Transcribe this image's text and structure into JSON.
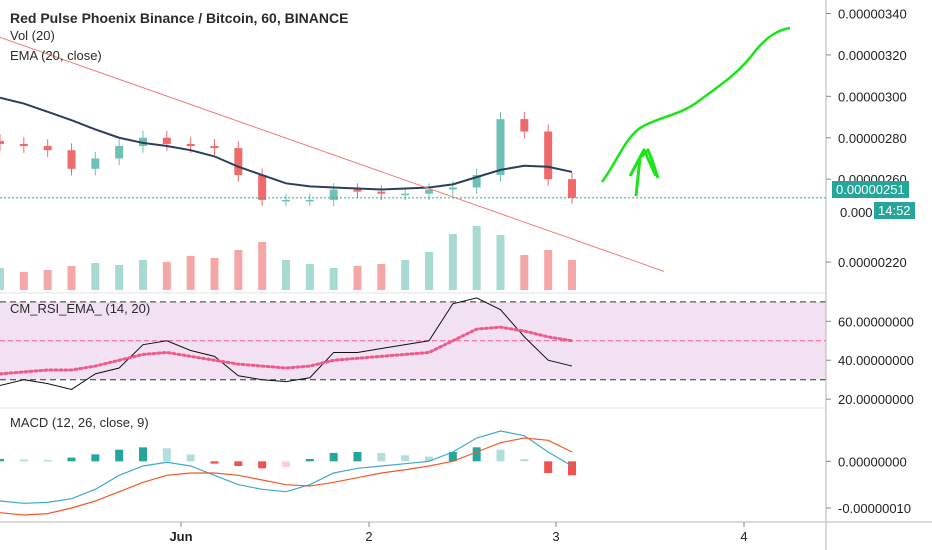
{
  "legends": {
    "title": "Red Pulse Phoenix Binance / Bitcoin, 60, BINANCE",
    "volume": "Vol (20)",
    "ema": "EMA (20, close)",
    "rsi": "CM_RSI_EMA_ (14, 20)",
    "macd": "MACD (12, 26, close, 9)"
  },
  "colors": {
    "up": "#6fc1b6",
    "down": "#ef6b6b",
    "ema": "#2b3f5c",
    "trendline": "#f27d7d",
    "arrow": "#19e619",
    "price_line": "#26a69a",
    "rsi_band": "#f1e1f2",
    "rsi_ema": "#ef5a8a",
    "macd_line": "#3fa9c9",
    "signal_line": "#f05a28"
  },
  "chart_data": [
    {
      "type": "candlestick",
      "title": "Red Pulse Phoenix Binance / Bitcoin, 60, BINANCE",
      "yticks": [
        "0.00000340",
        "0.00000320",
        "0.00000300",
        "0.00000280",
        "0.00000260",
        "0.00000220"
      ],
      "ylim": [
        2.065e-06,
        3.465e-06
      ],
      "xticks": [
        "Jun",
        "2",
        "3",
        "4"
      ],
      "last_price": "0.00000251",
      "countdown": "14:52",
      "partial_tick": "0.000",
      "series": [
        {
          "name": "EMA (20, close)",
          "y": [
            2.993e-06,
            2.965e-06,
            2.925e-06,
            2.885e-06,
            2.84e-06,
            2.8e-06,
            2.775e-06,
            2.76e-06,
            2.74e-06,
            2.71e-06,
            2.66e-06,
            2.62e-06,
            2.58e-06,
            2.565e-06,
            2.56e-06,
            2.555e-06,
            2.55e-06,
            2.555e-06,
            2.56e-06,
            2.575e-06,
            2.61e-06,
            2.645e-06,
            2.665e-06,
            2.66e-06,
            2.635e-06
          ]
        }
      ],
      "candles_close": [
        2.77e-06,
        2.76e-06,
        2.74e-06,
        2.65e-06,
        2.7e-06,
        2.76e-06,
        2.8e-06,
        2.77e-06,
        2.76e-06,
        2.75e-06,
        2.62e-06,
        2.5e-06,
        2.5e-06,
        2.5e-06,
        2.55e-06,
        2.54e-06,
        2.53e-06,
        2.53e-06,
        2.55e-06,
        2.56e-06,
        2.62e-06,
        2.89e-06,
        2.83e-06,
        2.6e-06,
        2.51e-06
      ]
    },
    {
      "type": "line",
      "title": "CM_RSI_EMA_ (14, 20)",
      "yticks": [
        "60.00000000",
        "40.00000000",
        "20.00000000"
      ],
      "ylim": [
        17.0,
        73.0
      ],
      "bands": [
        30,
        70
      ],
      "midline": 50,
      "series": [
        {
          "name": "RSI",
          "y": [
            27,
            30,
            28,
            25,
            33,
            36,
            48,
            50,
            45,
            42,
            32,
            30,
            29,
            31,
            44,
            44,
            46,
            48,
            50,
            69,
            72,
            66,
            52,
            40,
            37
          ]
        },
        {
          "name": "RSI EMA",
          "y": [
            33,
            34,
            35,
            35,
            37,
            40,
            43,
            44,
            42,
            40,
            38,
            37,
            36,
            37,
            40,
            41,
            42,
            43,
            44,
            50,
            56,
            57,
            55,
            52,
            50
          ]
        }
      ]
    },
    {
      "type": "bar",
      "title": "MACD (12, 26, close, 9)",
      "yticks": [
        "0.00000000",
        "-0.00000010"
      ],
      "ylim": [
        -1.3e-07,
        1.1e-07
      ],
      "series": [
        {
          "name": "MACD",
          "y": [
            -8.5e-08,
            -9e-08,
            -8.8e-08,
            -8e-08,
            -6e-08,
            -3e-08,
            -1e-08,
            -2e-09,
            -1e-08,
            -3e-08,
            -5e-08,
            -6e-08,
            -6.5e-08,
            -5e-08,
            -2.5e-08,
            -1.5e-08,
            -1e-08,
            -5e-09,
            0.0,
            2e-08,
            5e-08,
            6.5e-08,
            5.5e-08,
            2e-08,
            -1e-08
          ]
        },
        {
          "name": "Signal",
          "y": [
            -1.1e-07,
            -1.15e-07,
            -1.12e-07,
            -1e-07,
            -8.5e-08,
            -6.5e-08,
            -4.5e-08,
            -3e-08,
            -2.5e-08,
            -2.5e-08,
            -3e-08,
            -4e-08,
            -5e-08,
            -5.3e-08,
            -4.5e-08,
            -3.5e-08,
            -2.5e-08,
            -1.8e-08,
            -1e-08,
            0.0,
            2e-08,
            4e-08,
            5e-08,
            4.5e-08,
            2e-08
          ]
        },
        {
          "name": "Histogram",
          "y": [
            5e-09,
            4e-09,
            3e-09,
            8e-09,
            1.5e-08,
            2.5e-08,
            3e-08,
            2.8e-08,
            1.5e-08,
            -5e-09,
            -1e-08,
            -1.5e-08,
            -1.2e-08,
            5e-09,
            1.8e-08,
            2e-08,
            1.8e-08,
            1.3e-08,
            1e-08,
            2e-08,
            3e-08,
            2.5e-08,
            5e-09,
            -2.5e-08,
            -3e-08
          ]
        }
      ]
    }
  ]
}
